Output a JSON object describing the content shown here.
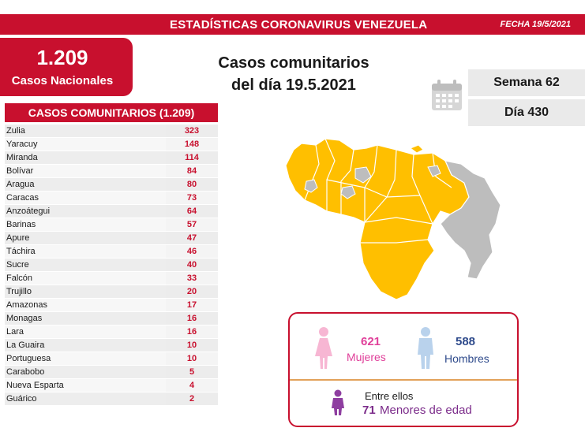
{
  "header": {
    "title": "ESTADÍSTICAS CORONAVIRUS VENEZUELA",
    "date": "FECHA 19/5/2021"
  },
  "national": {
    "count": "1.209",
    "label": "Casos Nacionales"
  },
  "headline": {
    "line1": "Casos comunitarios",
    "line2": "del día 19.5.2021"
  },
  "calendar": {
    "icon": "calendar-icon"
  },
  "week": {
    "label": "Semana 62"
  },
  "day": {
    "label": "Día 430"
  },
  "table": {
    "title": "CASOS COMUNITARIOS (1.209)",
    "rows": [
      {
        "state": "Zulia",
        "cases": "323"
      },
      {
        "state": "Yaracuy",
        "cases": "148"
      },
      {
        "state": "Miranda",
        "cases": "114"
      },
      {
        "state": "Bolívar",
        "cases": "84"
      },
      {
        "state": "Aragua",
        "cases": "80"
      },
      {
        "state": "Caracas",
        "cases": "73"
      },
      {
        "state": "Anzoátegui",
        "cases": "64"
      },
      {
        "state": "Barinas",
        "cases": "57"
      },
      {
        "state": "Apure",
        "cases": "47"
      },
      {
        "state": "Táchira",
        "cases": "46"
      },
      {
        "state": "Sucre",
        "cases": "40"
      },
      {
        "state": "Falcón",
        "cases": "33"
      },
      {
        "state": "Trujillo",
        "cases": "20"
      },
      {
        "state": "Amazonas",
        "cases": "17"
      },
      {
        "state": "Monagas",
        "cases": "16"
      },
      {
        "state": "Lara",
        "cases": "16"
      },
      {
        "state": "La Guaira",
        "cases": "10"
      },
      {
        "state": "Portuguesa",
        "cases": "10"
      },
      {
        "state": "Carabobo",
        "cases": "5"
      },
      {
        "state": "Nueva Esparta",
        "cases": "4"
      },
      {
        "state": "Guárico",
        "cases": "2"
      }
    ]
  },
  "map": {
    "icon": "venezuela-map"
  },
  "gender": {
    "women": {
      "count": "621",
      "label": "Mujeres",
      "icon": "woman-icon"
    },
    "men": {
      "count": "588",
      "label": "Hombres",
      "icon": "man-icon"
    },
    "minors": {
      "intro": "Entre ellos",
      "count": "71",
      "label": "Menores de edad",
      "icon": "child-icon"
    }
  },
  "colors": {
    "brand_red": "#c8102e",
    "map_cases": "#ffbf00",
    "map_no_cases": "#bdbdbd",
    "women": "#e0409a",
    "men": "#2f4b8c",
    "minors": "#7b2b8a"
  }
}
